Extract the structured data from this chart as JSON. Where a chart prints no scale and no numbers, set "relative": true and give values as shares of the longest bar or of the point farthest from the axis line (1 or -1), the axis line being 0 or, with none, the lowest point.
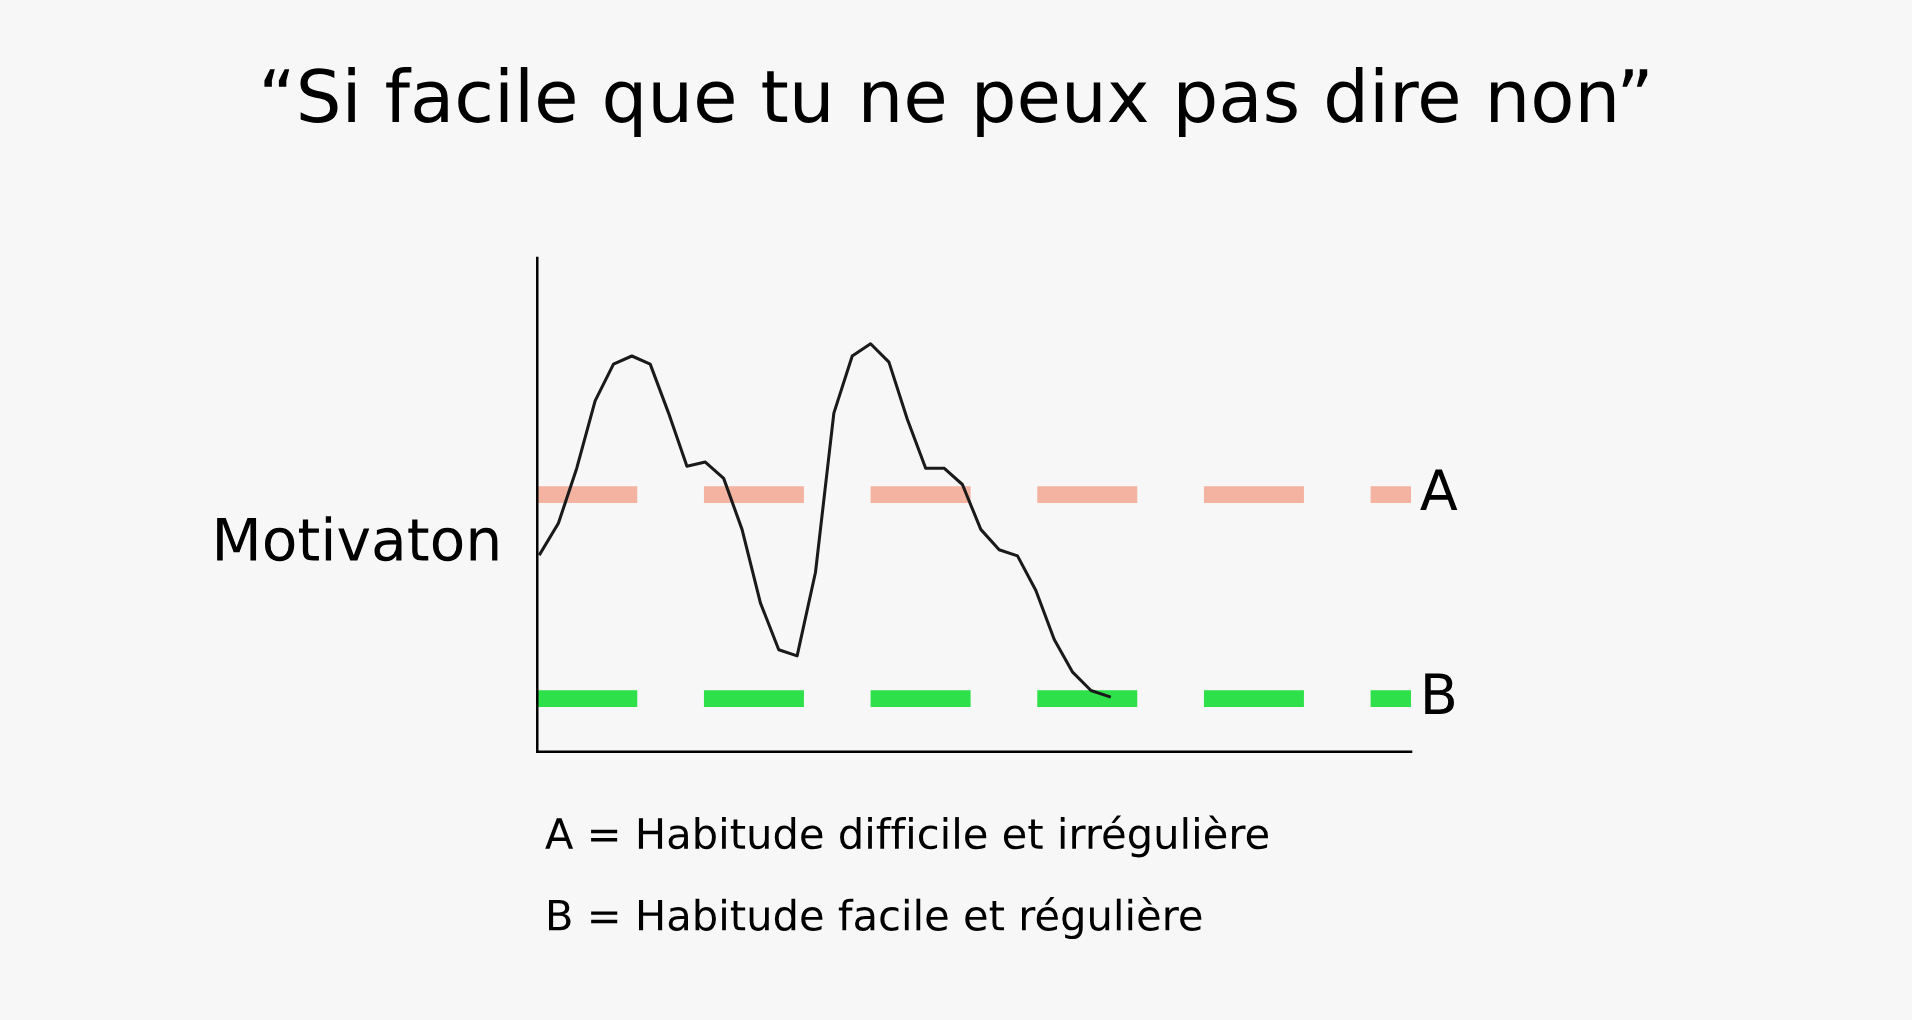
{
  "chart_data": {
    "type": "line",
    "title": "“Si facile que tu ne peux pas dire non”",
    "ylabel": "Motivaton",
    "relative": true,
    "categories": [
      null,
      null,
      null,
      null,
      null,
      null,
      null,
      null,
      null,
      null,
      null,
      null,
      null,
      null,
      null,
      null,
      null,
      null,
      null,
      null,
      null,
      null,
      null,
      null,
      null,
      null,
      null,
      null,
      null,
      null,
      null,
      null
    ],
    "series": [
      {
        "color": "#1a1a1a",
        "values": [
          0.485,
          0.56,
          0.695,
          0.86,
          0.95,
          0.97,
          0.95,
          0.83,
          0.7,
          0.71,
          0.67,
          0.545,
          0.365,
          0.25,
          0.235,
          0.44,
          0.83,
          0.97,
          1.0,
          0.955,
          0.815,
          0.695,
          0.695,
          0.655,
          0.545,
          0.495,
          0.48,
          0.395,
          0.275,
          0.195,
          0.15,
          0.135
        ]
      }
    ],
    "ref_lines": [
      {
        "axis": "y",
        "value": 0.63,
        "label": "A",
        "color": "#f4b3a0",
        "line_style": "dashed"
      },
      {
        "axis": "y",
        "value": 0.13,
        "label": "B",
        "color": "#2ee04a",
        "line_style": "dashed"
      }
    ],
    "annotations": [
      "A = Habitude difficile et irrégulière",
      "B = Habitude facile et régulière"
    ],
    "legend": false
  }
}
